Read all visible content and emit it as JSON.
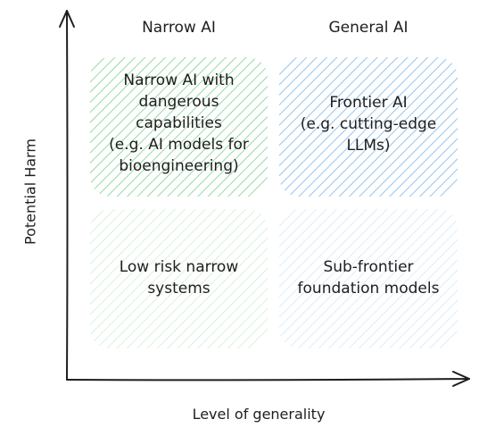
{
  "columns": {
    "left": "Narrow AI",
    "right": "General AI"
  },
  "axes": {
    "y_label": "Potential Harm",
    "x_label": "Level of generality"
  },
  "quadrants": {
    "top_left": {
      "lines": [
        "Narrow AI with",
        "dangerous",
        "capabilities",
        "(e.g. AI models for",
        "bioengineering)"
      ]
    },
    "top_right": {
      "lines": [
        "Frontier AI",
        "(e.g. cutting-edge",
        "LLMs)"
      ]
    },
    "bottom_left": {
      "lines": [
        "Low risk narrow",
        "systems"
      ]
    },
    "bottom_right": {
      "lines": [
        "Sub-frontier",
        "foundation models"
      ]
    }
  },
  "colors": {
    "axis": "#1e1e1e",
    "green_strong": "#7bd08f",
    "green_light": "#c6ecd0",
    "blue_strong": "#7ab6ea",
    "blue_light": "#cfe5f6"
  }
}
